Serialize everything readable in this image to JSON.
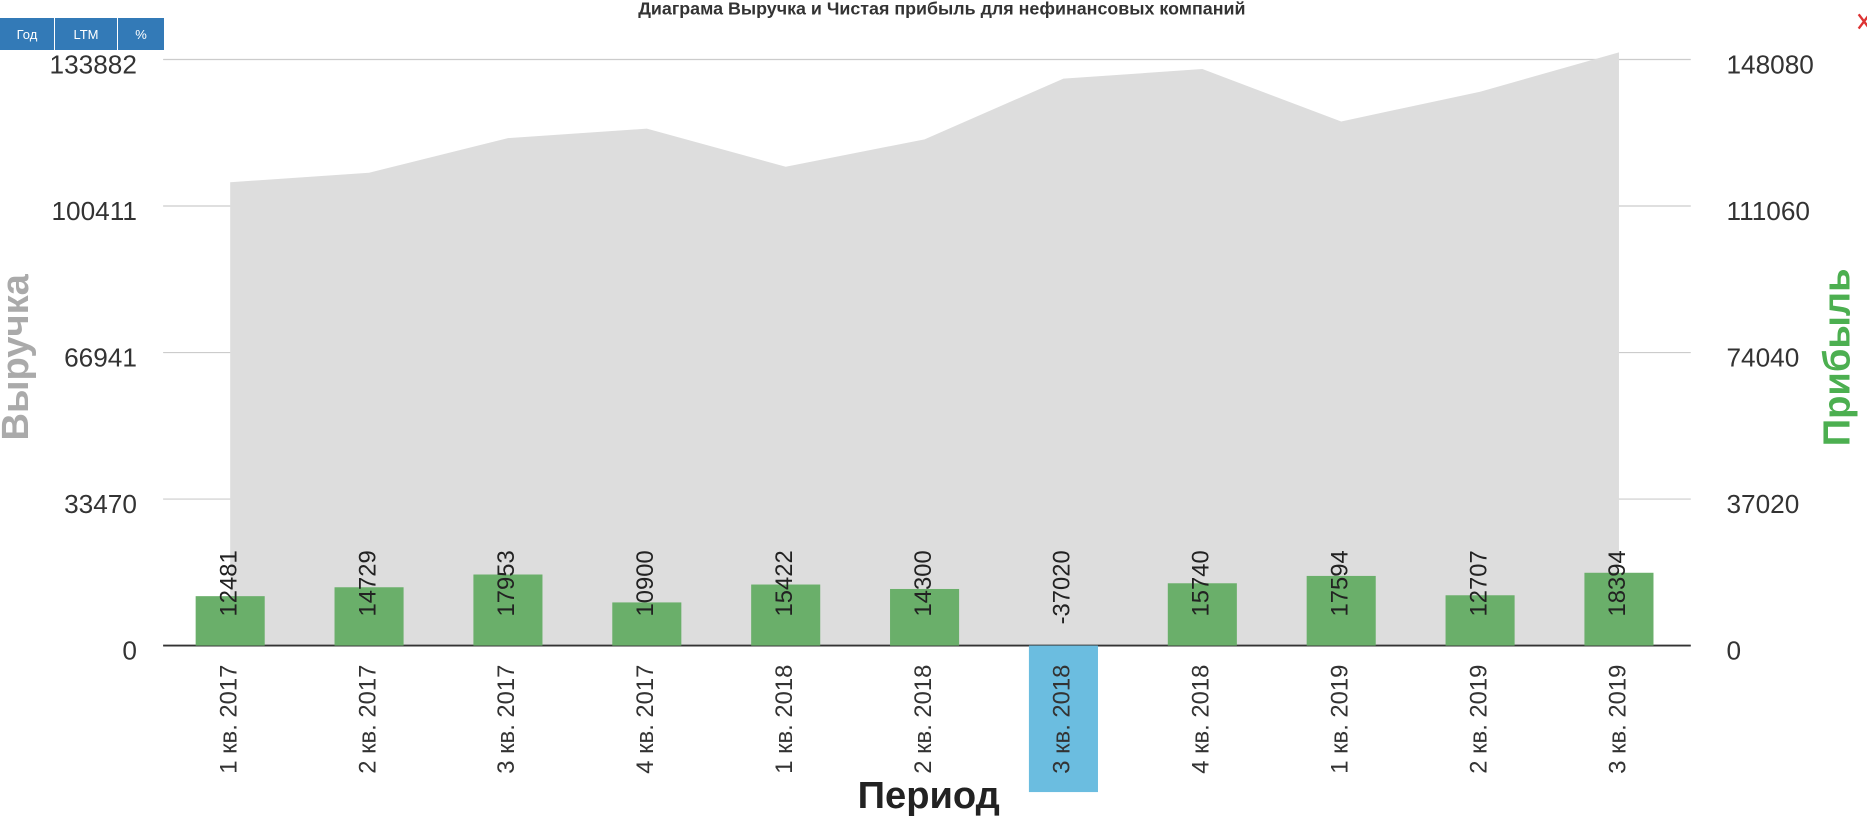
{
  "buttons": [
    "Год",
    "LTM",
    "%"
  ],
  "chart_data": {
    "type": "combo",
    "title": "Диаграма Выручка и Чистая прибыль для нефинансовых компаний",
    "x_label": "Период",
    "y_label": "Выручка",
    "y2_label": "Прибыль",
    "categories": [
      "1 кв. 2017",
      "2 кв. 2017",
      "3 кв. 2017",
      "4 кв. 2017",
      "1 кв. 2018",
      "2 кв. 2018",
      "3 кв. 2018",
      "4 кв. 2018",
      "1 кв. 2019",
      "2 кв. 2019",
      "3 кв. 2019"
    ],
    "series": [
      {
        "name": "Выручка",
        "type": "area",
        "color": "#dddddd",
        "values": [
          105850,
          108020,
          115920,
          118090,
          109380,
          115640,
          129520,
          131700,
          119720,
          126530,
          135510
        ]
      },
      {
        "name": "Прибыль",
        "type": "bar",
        "axis": "y2",
        "color": "#6aaf6a",
        "negative_color": "#6bbde0",
        "values": [
          12481,
          14729,
          17953,
          10900,
          15422,
          14300,
          -37020,
          15740,
          17594,
          12707,
          18394
        ]
      }
    ],
    "ylim": [
      -33470,
      137000
    ],
    "yticks": [
      0,
      33470,
      66941,
      100411,
      133882
    ],
    "y2lim": [
      -37020,
      151530
    ],
    "y2ticks": [
      0,
      37020,
      74040,
      111060,
      148080
    ],
    "grid": true
  }
}
